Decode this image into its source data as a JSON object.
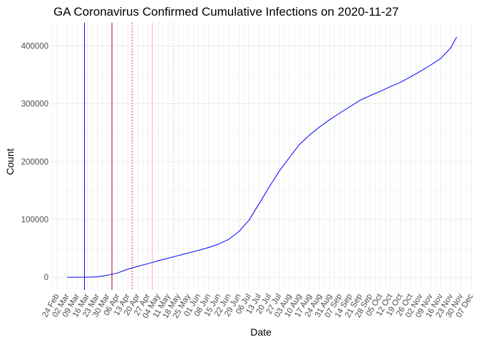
{
  "chart_data": {
    "type": "line",
    "title": "GA Coronavirus Confirmed Cumulative Infections on 2020-11-27",
    "xlabel": "Date",
    "ylabel": "Count",
    "x_axis_type": "date",
    "xlim": [
      "2020-02-20",
      "2020-12-10"
    ],
    "ylim": [
      -22000,
      440000
    ],
    "y_ticks": [
      0,
      100000,
      200000,
      300000,
      400000
    ],
    "y_tick_labels": [
      "0",
      "100000",
      "200000",
      "300000",
      "400000"
    ],
    "x_ticks": [
      "2020-02-24",
      "2020-03-02",
      "2020-03-09",
      "2020-03-16",
      "2020-03-23",
      "2020-03-30",
      "2020-04-06",
      "2020-04-13",
      "2020-04-20",
      "2020-04-27",
      "2020-05-04",
      "2020-05-11",
      "2020-05-18",
      "2020-05-25",
      "2020-06-01",
      "2020-06-08",
      "2020-06-15",
      "2020-06-22",
      "2020-06-29",
      "2020-07-06",
      "2020-07-13",
      "2020-07-20",
      "2020-07-27",
      "2020-08-03",
      "2020-08-10",
      "2020-08-17",
      "2020-08-24",
      "2020-08-31",
      "2020-09-07",
      "2020-09-14",
      "2020-09-21",
      "2020-09-28",
      "2020-10-05",
      "2020-10-12",
      "2020-10-19",
      "2020-10-26",
      "2020-11-02",
      "2020-11-09",
      "2020-11-16",
      "2020-11-23",
      "2020-11-30",
      "2020-12-07"
    ],
    "x_tick_labels": [
      "24 Feb",
      "02 Mar",
      "09 Mar",
      "16 Mar",
      "23 Mar",
      "30 Mar",
      "06 Apr",
      "13 Apr",
      "20 Apr",
      "27 Apr",
      "04 May",
      "11 May",
      "18 May",
      "25 May",
      "01 Jun",
      "08 Jun",
      "15 Jun",
      "22 Jun",
      "29 Jun",
      "06 Jul",
      "13 Jul",
      "20 Jul",
      "27 Jul",
      "03 Aug",
      "10 Aug",
      "17 Aug",
      "24 Aug",
      "31 Aug",
      "07 Sep",
      "14 Sep",
      "21 Sep",
      "28 Sep",
      "05 Oct",
      "12 Oct",
      "19 Oct",
      "26 Oct",
      "02 Nov",
      "09 Nov",
      "16 Nov",
      "23 Nov",
      "30 Nov",
      "07 Dec"
    ],
    "grid": true,
    "legend": "none",
    "series": [
      {
        "color": "#0000ff",
        "points": [
          [
            "2020-03-02",
            0
          ],
          [
            "2020-03-09",
            10
          ],
          [
            "2020-03-16",
            100
          ],
          [
            "2020-03-23",
            800
          ],
          [
            "2020-03-30",
            3500
          ],
          [
            "2020-04-06",
            7500
          ],
          [
            "2020-04-13",
            14000
          ],
          [
            "2020-04-20",
            19000
          ],
          [
            "2020-04-27",
            23500
          ],
          [
            "2020-05-04",
            28500
          ],
          [
            "2020-05-11",
            33000
          ],
          [
            "2020-05-18",
            37500
          ],
          [
            "2020-05-25",
            42000
          ],
          [
            "2020-06-01",
            46500
          ],
          [
            "2020-06-08",
            51500
          ],
          [
            "2020-06-15",
            57500
          ],
          [
            "2020-06-22",
            65500
          ],
          [
            "2020-06-29",
            79000
          ],
          [
            "2020-07-06",
            98500
          ],
          [
            "2020-07-13",
            127000
          ],
          [
            "2020-07-20",
            156000
          ],
          [
            "2020-07-27",
            183500
          ],
          [
            "2020-08-03",
            207000
          ],
          [
            "2020-08-10",
            229500
          ],
          [
            "2020-08-17",
            246000
          ],
          [
            "2020-08-24",
            260000
          ],
          [
            "2020-08-31",
            272500
          ],
          [
            "2020-09-07",
            284000
          ],
          [
            "2020-09-14",
            295000
          ],
          [
            "2020-09-21",
            306000
          ],
          [
            "2020-09-28",
            314000
          ],
          [
            "2020-10-05",
            321500
          ],
          [
            "2020-10-12",
            329500
          ],
          [
            "2020-10-19",
            337000
          ],
          [
            "2020-10-26",
            346500
          ],
          [
            "2020-11-02",
            356500
          ],
          [
            "2020-11-09",
            367000
          ],
          [
            "2020-11-16",
            378500
          ],
          [
            "2020-11-23",
            397000
          ],
          [
            "2020-11-27",
            415500
          ]
        ]
      }
    ],
    "vlines": [
      {
        "x": "2020-03-14",
        "color": "#0000ff",
        "style": "solid"
      },
      {
        "x": "2020-04-02",
        "color": "#cc0000",
        "style": "solid"
      },
      {
        "x": "2020-04-16",
        "color": "#ff0000",
        "style": "dotted"
      },
      {
        "x": "2020-04-30",
        "color": "#ffb6c1",
        "style": "solid"
      },
      {
        "x": "2020-05-15",
        "color": "#ffb6c1",
        "style": "dotted"
      }
    ]
  }
}
